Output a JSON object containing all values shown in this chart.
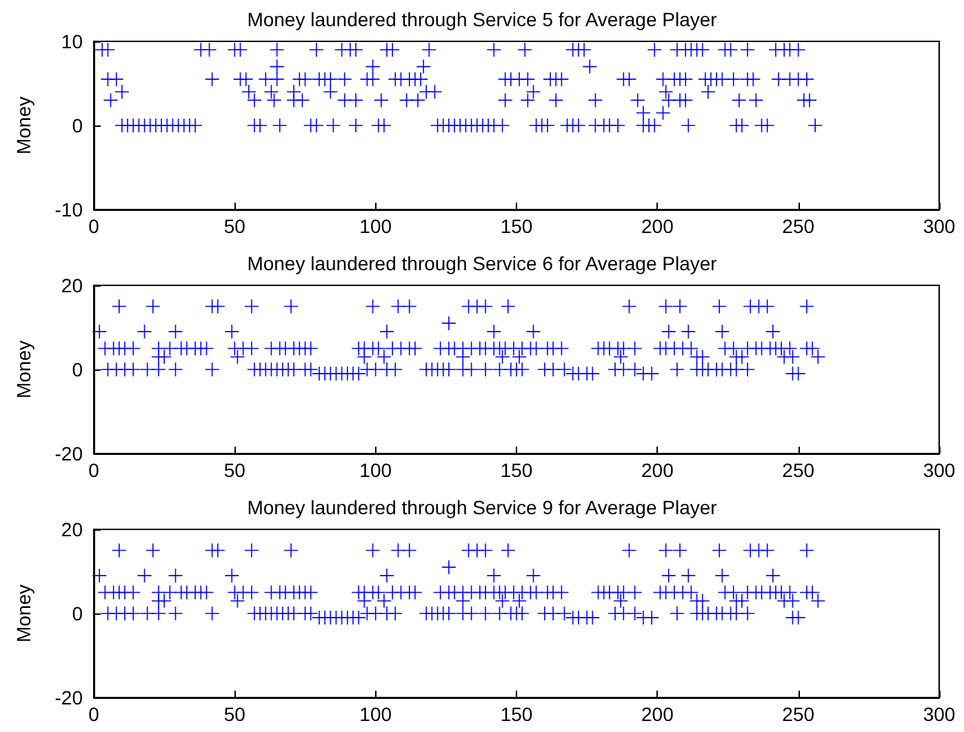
{
  "chart_data": [
    {
      "type": "scatter",
      "title": "Money laundered through Service 5 for Average Player",
      "ylabel": "Money",
      "marker": "cross",
      "xlim": [
        0,
        300
      ],
      "xticks": [
        0,
        50,
        100,
        150,
        200,
        250,
        300
      ],
      "ylim": [
        -10,
        10
      ],
      "yticks": [
        -10,
        0,
        10
      ],
      "series": [
        {
          "color": "#0000ff",
          "x": [
            3,
            5,
            38,
            41,
            50,
            52,
            65,
            79,
            88,
            91,
            93,
            104,
            106,
            119,
            142,
            153,
            170,
            172,
            174,
            199,
            207,
            210,
            212,
            214,
            216,
            224,
            226,
            232,
            242,
            245,
            247,
            250
          ],
          "values": [
            9,
            9,
            9,
            9,
            9,
            9,
            9,
            9,
            9,
            9,
            9,
            9,
            9,
            9,
            9,
            9,
            9,
            9,
            9,
            9,
            9,
            9,
            9,
            9,
            9,
            9,
            9,
            9,
            9,
            9,
            9,
            9
          ]
        },
        {
          "color": "#0000ff",
          "x": [
            65,
            99,
            117,
            176
          ],
          "values": [
            7,
            7,
            7,
            7
          ]
        },
        {
          "color": "#0000ff",
          "x": [
            5,
            8,
            42,
            52,
            54,
            61,
            65,
            73,
            75,
            80,
            82,
            84,
            89,
            97,
            99,
            107,
            109,
            112,
            114,
            116,
            146,
            148,
            151,
            154,
            162,
            164,
            166,
            188,
            190,
            202,
            206,
            208,
            210,
            217,
            219,
            221,
            223,
            227,
            232,
            234,
            243,
            247,
            250,
            253
          ],
          "values": [
            5.5,
            5.5,
            5.5,
            5.5,
            5.5,
            5.5,
            5.5,
            5.5,
            5.5,
            5.5,
            5.5,
            5.5,
            5.5,
            5.5,
            5.5,
            5.5,
            5.5,
            5.5,
            5.5,
            5.5,
            5.5,
            5.5,
            5.5,
            5.5,
            5.5,
            5.5,
            5.5,
            5.5,
            5.5,
            5.5,
            5.5,
            5.5,
            5.5,
            5.5,
            5.5,
            5.5,
            5.5,
            5.5,
            5.5,
            5.5,
            5.5,
            5.5,
            5.5,
            5.5
          ]
        },
        {
          "color": "#0000ff",
          "x": [
            10,
            55,
            63,
            71,
            84,
            118,
            121,
            156,
            203,
            218
          ],
          "values": [
            4,
            4,
            4,
            4,
            4,
            4,
            4,
            4,
            4,
            4
          ]
        },
        {
          "color": "#0000ff",
          "x": [
            6,
            57,
            64,
            71,
            74,
            89,
            93,
            102,
            111,
            115,
            146,
            154,
            164,
            178,
            193,
            204,
            208,
            210,
            229,
            235,
            252,
            254
          ],
          "values": [
            3,
            3,
            3,
            3,
            3,
            3,
            3,
            3,
            3,
            3,
            3,
            3,
            3,
            3,
            3,
            3,
            3,
            3,
            3,
            3,
            3,
            3
          ]
        },
        {
          "color": "#0000ff",
          "x": [
            195,
            202
          ],
          "values": [
            1.5,
            1.5
          ]
        },
        {
          "color": "#0000ff",
          "x": [
            10,
            12,
            14,
            16,
            18,
            20,
            22,
            24,
            26,
            28,
            30,
            32,
            34,
            36,
            57,
            59,
            66,
            77,
            79,
            85,
            93,
            101,
            103,
            122,
            124,
            126,
            128,
            130,
            132,
            134,
            136,
            138,
            140,
            142,
            145,
            157,
            159,
            161,
            168,
            170,
            172,
            178,
            181,
            183,
            186,
            195,
            197,
            199,
            211,
            228,
            230,
            237,
            239,
            256
          ],
          "values": [
            0,
            0,
            0,
            0,
            0,
            0,
            0,
            0,
            0,
            0,
            0,
            0,
            0,
            0,
            0,
            0,
            0,
            0,
            0,
            0,
            0,
            0,
            0,
            0,
            0,
            0,
            0,
            0,
            0,
            0,
            0,
            0,
            0,
            0,
            0,
            0,
            0,
            0,
            0,
            0,
            0,
            0,
            0,
            0,
            0,
            0,
            0,
            0,
            0,
            0,
            0,
            0,
            0,
            0
          ]
        }
      ]
    },
    {
      "type": "scatter",
      "title": "Money laundered through Service 6 for Average Player",
      "ylabel": "Money",
      "marker": "cross",
      "xlim": [
        0,
        300
      ],
      "xticks": [
        0,
        50,
        100,
        150,
        200,
        250,
        300
      ],
      "ylim": [
        -20,
        20
      ],
      "yticks": [
        -20,
        0,
        20
      ],
      "series": [
        {
          "color": "#0000ff",
          "x": [
            9,
            21,
            42,
            44,
            56,
            70,
            99,
            108,
            112,
            133,
            136,
            139,
            147,
            190,
            203,
            208,
            222,
            233,
            236,
            239,
            253
          ],
          "values": [
            15,
            15,
            15,
            15,
            15,
            15,
            15,
            15,
            15,
            15,
            15,
            15,
            15,
            15,
            15,
            15,
            15,
            15,
            15,
            15,
            15
          ]
        },
        {
          "color": "#0000ff",
          "x": [
            126
          ],
          "values": [
            11
          ]
        },
        {
          "color": "#0000ff",
          "x": [
            2,
            18,
            29,
            49,
            104,
            142,
            156,
            204,
            211,
            223,
            241
          ],
          "values": [
            9,
            9,
            9,
            9,
            9,
            9,
            9,
            9,
            9,
            9,
            9
          ]
        },
        {
          "color": "#0000ff",
          "x": [
            4,
            7,
            9,
            11,
            14,
            23,
            27,
            31,
            33,
            36,
            38,
            40,
            50,
            53,
            56,
            63,
            66,
            68,
            71,
            73,
            75,
            77,
            94,
            96,
            99,
            101,
            106,
            109,
            112,
            114,
            123,
            126,
            128,
            131,
            134,
            137,
            139,
            142,
            144,
            146,
            149,
            152,
            155,
            157,
            161,
            163,
            166,
            179,
            181,
            183,
            186,
            188,
            192,
            201,
            203,
            206,
            209,
            212,
            224,
            227,
            232,
            235,
            237,
            240,
            242,
            244,
            247,
            253,
            255
          ],
          "values": [
            5,
            5,
            5,
            5,
            5,
            5,
            5,
            5,
            5,
            5,
            5,
            5,
            5,
            5,
            5,
            5,
            5,
            5,
            5,
            5,
            5,
            5,
            5,
            5,
            5,
            5,
            5,
            5,
            5,
            5,
            5,
            5,
            5,
            5,
            5,
            5,
            5,
            5,
            5,
            5,
            5,
            5,
            5,
            5,
            5,
            5,
            5,
            5,
            5,
            5,
            5,
            5,
            5,
            5,
            5,
            5,
            5,
            5,
            5,
            5,
            5,
            5,
            5,
            5,
            5,
            5,
            5,
            5,
            5
          ]
        },
        {
          "color": "#0000ff",
          "x": [
            23,
            25,
            51,
            96,
            103,
            131,
            145,
            151,
            187,
            214,
            216,
            228,
            230,
            245,
            248,
            257
          ],
          "values": [
            3,
            3,
            3,
            3,
            3,
            3,
            3,
            3,
            3,
            3,
            3,
            3,
            3,
            3,
            3,
            3
          ]
        },
        {
          "color": "#0000ff",
          "x": [
            5,
            8,
            11,
            14,
            19,
            23,
            29,
            42,
            57,
            59,
            61,
            63,
            65,
            67,
            69,
            71,
            75,
            77,
            97,
            100,
            104,
            107,
            118,
            120,
            122,
            124,
            126,
            131,
            134,
            139,
            144,
            148,
            150,
            152,
            160,
            163,
            167,
            185,
            188,
            192,
            207,
            214,
            216,
            218,
            221,
            223,
            226,
            228,
            232
          ],
          "values": [
            0,
            0,
            0,
            0,
            0,
            0,
            0,
            0,
            0,
            0,
            0,
            0,
            0,
            0,
            0,
            0,
            0,
            0,
            0,
            0,
            0,
            0,
            0,
            0,
            0,
            0,
            0,
            0,
            0,
            0,
            0,
            0,
            0,
            0,
            0,
            0,
            0,
            0,
            0,
            0,
            0,
            0,
            0,
            0,
            0,
            0,
            0,
            0,
            0
          ]
        },
        {
          "color": "#0000ff",
          "x": [
            80,
            82,
            84,
            86,
            88,
            90,
            92,
            94,
            170,
            172,
            175,
            177,
            195,
            198,
            248,
            250
          ],
          "values": [
            -1,
            -1,
            -1,
            -1,
            -1,
            -1,
            -1,
            -1,
            -1,
            -1,
            -1,
            -1,
            -1,
            -1,
            -1,
            -1
          ]
        }
      ]
    },
    {
      "type": "scatter",
      "title": "Money laundered through Service 9 for Average Player",
      "ylabel": "Money",
      "marker": "cross",
      "xlim": [
        0,
        300
      ],
      "xticks": [
        0,
        50,
        100,
        150,
        200,
        250,
        300
      ],
      "ylim": [
        -20,
        20
      ],
      "yticks": [
        -20,
        0,
        20
      ],
      "series": [
        {
          "color": "#0000ff",
          "x": [
            9,
            21,
            42,
            44,
            56,
            70,
            99,
            108,
            112,
            133,
            136,
            139,
            147,
            190,
            203,
            208,
            222,
            233,
            236,
            239,
            253
          ],
          "values": [
            15,
            15,
            15,
            15,
            15,
            15,
            15,
            15,
            15,
            15,
            15,
            15,
            15,
            15,
            15,
            15,
            15,
            15,
            15,
            15,
            15
          ]
        },
        {
          "color": "#0000ff",
          "x": [
            126
          ],
          "values": [
            11
          ]
        },
        {
          "color": "#0000ff",
          "x": [
            2,
            18,
            29,
            49,
            104,
            142,
            156,
            204,
            211,
            223,
            241
          ],
          "values": [
            9,
            9,
            9,
            9,
            9,
            9,
            9,
            9,
            9,
            9,
            9
          ]
        },
        {
          "color": "#0000ff",
          "x": [
            4,
            7,
            9,
            11,
            14,
            23,
            27,
            31,
            33,
            36,
            38,
            40,
            50,
            53,
            56,
            63,
            66,
            68,
            71,
            73,
            75,
            77,
            94,
            96,
            99,
            101,
            106,
            109,
            112,
            114,
            123,
            126,
            128,
            131,
            134,
            137,
            139,
            142,
            144,
            146,
            149,
            152,
            155,
            157,
            161,
            163,
            166,
            179,
            181,
            183,
            186,
            188,
            192,
            201,
            203,
            206,
            209,
            212,
            224,
            227,
            232,
            235,
            237,
            240,
            242,
            244,
            247,
            253,
            255
          ],
          "values": [
            5,
            5,
            5,
            5,
            5,
            5,
            5,
            5,
            5,
            5,
            5,
            5,
            5,
            5,
            5,
            5,
            5,
            5,
            5,
            5,
            5,
            5,
            5,
            5,
            5,
            5,
            5,
            5,
            5,
            5,
            5,
            5,
            5,
            5,
            5,
            5,
            5,
            5,
            5,
            5,
            5,
            5,
            5,
            5,
            5,
            5,
            5,
            5,
            5,
            5,
            5,
            5,
            5,
            5,
            5,
            5,
            5,
            5,
            5,
            5,
            5,
            5,
            5,
            5,
            5,
            5,
            5,
            5,
            5
          ]
        },
        {
          "color": "#0000ff",
          "x": [
            23,
            25,
            51,
            96,
            103,
            131,
            145,
            151,
            187,
            214,
            216,
            228,
            230,
            245,
            248,
            257
          ],
          "values": [
            3,
            3,
            3,
            3,
            3,
            3,
            3,
            3,
            3,
            3,
            3,
            3,
            3,
            3,
            3,
            3
          ]
        },
        {
          "color": "#0000ff",
          "x": [
            5,
            8,
            11,
            14,
            19,
            23,
            29,
            42,
            57,
            59,
            61,
            63,
            65,
            67,
            69,
            71,
            75,
            77,
            97,
            100,
            104,
            107,
            118,
            120,
            122,
            124,
            126,
            131,
            134,
            139,
            144,
            148,
            150,
            152,
            160,
            163,
            167,
            185,
            188,
            192,
            207,
            214,
            216,
            218,
            221,
            223,
            226,
            228,
            232
          ],
          "values": [
            0,
            0,
            0,
            0,
            0,
            0,
            0,
            0,
            0,
            0,
            0,
            0,
            0,
            0,
            0,
            0,
            0,
            0,
            0,
            0,
            0,
            0,
            0,
            0,
            0,
            0,
            0,
            0,
            0,
            0,
            0,
            0,
            0,
            0,
            0,
            0,
            0,
            0,
            0,
            0,
            0,
            0,
            0,
            0,
            0,
            0,
            0,
            0,
            0
          ]
        },
        {
          "color": "#0000ff",
          "x": [
            80,
            82,
            84,
            86,
            88,
            90,
            92,
            94,
            170,
            172,
            175,
            177,
            195,
            198,
            248,
            250
          ],
          "values": [
            -1,
            -1,
            -1,
            -1,
            -1,
            -1,
            -1,
            -1,
            -1,
            -1,
            -1,
            -1,
            -1,
            -1,
            -1,
            -1
          ]
        }
      ]
    }
  ]
}
